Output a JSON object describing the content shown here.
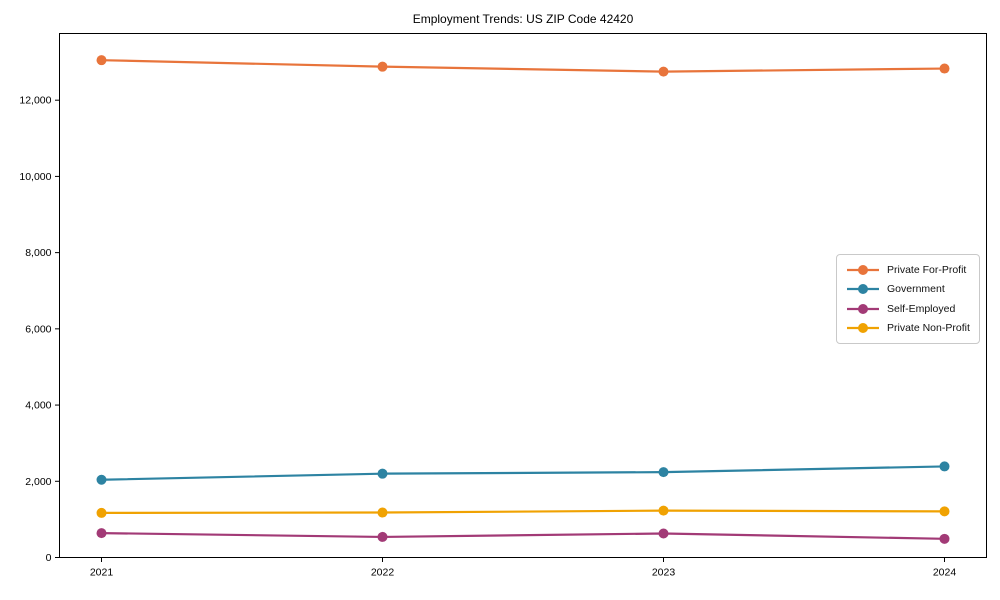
{
  "figure": {
    "background": "#ffffff"
  },
  "chart_data": {
    "type": "line",
    "title": "Employment Trends: US ZIP Code 42420",
    "categories": [
      "2021",
      "2022",
      "2023",
      "2024"
    ],
    "series": [
      {
        "name": "Private For-Profit",
        "color": "#E8743B",
        "values": [
          13050,
          12880,
          12750,
          12830
        ]
      },
      {
        "name": "Government",
        "color": "#2D83A2",
        "values": [
          2040,
          2200,
          2240,
          2390
        ]
      },
      {
        "name": "Self-Employed",
        "color": "#A23A76",
        "values": [
          640,
          540,
          630,
          490
        ]
      },
      {
        "name": "Private Non-Profit",
        "color": "#F0A202",
        "values": [
          1170,
          1180,
          1230,
          1210
        ]
      }
    ],
    "xlabel": "",
    "ylabel": "",
    "ylim": [
      0,
      13750
    ],
    "yticks": [
      0,
      2000,
      4000,
      6000,
      8000,
      10000,
      12000
    ],
    "ytick_labels": [
      "0",
      "2,000",
      "4,000",
      "6,000",
      "8,000",
      "10,000",
      "12,000"
    ],
    "grid": false,
    "marker": "circle",
    "line_width": 2.2,
    "marker_radius": 5,
    "axes_color": "#000000",
    "tick_label_color": "#000000",
    "legend": {
      "position": "center-right",
      "border_color": "#c9c9c9"
    }
  }
}
